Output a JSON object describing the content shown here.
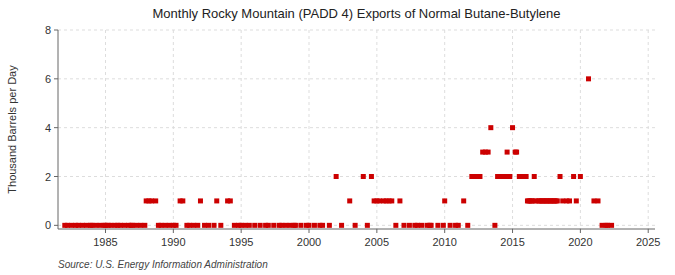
{
  "chart_data": {
    "type": "scatter",
    "title": "Monthly Rocky Mountain (PADD 4) Exports of Normal Butane-Butylene",
    "y_label": "Thousand Barrels per Day",
    "annotations": [
      "Source: U.S. Energy Information Administration"
    ],
    "color": "#cc0000",
    "marker": "square",
    "grid": true,
    "xlim": [
      1981.5,
      2025.5
    ],
    "ylim": [
      -0.15,
      8
    ],
    "yticks": [
      0,
      2,
      4,
      6,
      8
    ],
    "xticks": [
      1985,
      1990,
      1995,
      2000,
      2005,
      2010,
      2015,
      2020,
      2025
    ],
    "x": [
      1982.0,
      1982.2,
      1982.5,
      1982.8,
      1983.0,
      1983.3,
      1983.6,
      1983.9,
      1984.0,
      1984.3,
      1984.6,
      1984.9,
      1985.0,
      1985.2,
      1985.4,
      1985.7,
      1985.9,
      1986.1,
      1986.4,
      1986.7,
      1986.9,
      1987.0,
      1987.3,
      1987.6,
      1987.9,
      1988.0,
      1988.2,
      1988.4,
      1988.7,
      1988.9,
      1989.1,
      1989.4,
      1989.7,
      1990.0,
      1990.2,
      1990.5,
      1990.7,
      1991.0,
      1991.2,
      1991.5,
      1991.8,
      1992.0,
      1992.3,
      1992.6,
      1993.0,
      1993.2,
      1993.5,
      1994.0,
      1994.2,
      1994.5,
      1994.8,
      1995.0,
      1995.3,
      1995.6,
      1996.0,
      1996.4,
      1996.8,
      1997.0,
      1997.4,
      1997.8,
      1998.0,
      1998.3,
      1998.6,
      1998.9,
      1999.0,
      1999.4,
      1999.8,
      2000.0,
      2000.4,
      2000.8,
      2001.0,
      2001.5,
      2002.0,
      2002.4,
      2003.0,
      2003.4,
      2004.0,
      2004.3,
      2004.6,
      2004.8,
      2005.0,
      2005.2,
      2005.5,
      2005.7,
      2005.9,
      2006.1,
      2006.4,
      2006.7,
      2007.0,
      2007.4,
      2007.8,
      2008.0,
      2008.3,
      2008.7,
      2008.9,
      2009.0,
      2009.5,
      2009.9,
      2010.0,
      2010.4,
      2010.8,
      2011.0,
      2011.4,
      2011.7,
      2012.0,
      2012.2,
      2012.4,
      2012.6,
      2012.8,
      2013.0,
      2013.2,
      2013.4,
      2013.7,
      2013.9,
      2014.1,
      2014.3,
      2014.5,
      2014.6,
      2014.8,
      2015.0,
      2015.2,
      2015.3,
      2015.5,
      2015.6,
      2015.8,
      2015.9,
      2016.0,
      2016.1,
      2016.2,
      2016.3,
      2016.4,
      2016.5,
      2016.6,
      2016.7,
      2016.9,
      2017.0,
      2017.1,
      2017.2,
      2017.3,
      2017.4,
      2017.5,
      2017.6,
      2017.7,
      2017.8,
      2017.9,
      2018.0,
      2018.1,
      2018.2,
      2018.3,
      2018.5,
      2018.7,
      2019.0,
      2019.2,
      2019.5,
      2019.7,
      2020.0,
      2020.6,
      2021.0,
      2021.3,
      2021.6,
      2021.9,
      2022.0,
      2022.3
    ],
    "values": [
      0,
      0,
      0,
      0,
      0,
      0,
      0,
      0,
      0,
      0,
      0,
      0,
      0,
      0,
      0,
      0,
      0,
      0,
      0,
      0,
      0,
      0,
      0,
      0,
      0,
      1,
      1,
      1,
      1,
      0,
      0,
      0,
      0,
      0,
      0,
      1,
      1,
      0,
      0,
      0,
      0,
      1,
      0,
      0,
      0,
      1,
      0,
      1,
      1,
      0,
      0,
      0,
      0,
      0,
      0,
      0,
      0,
      0,
      0,
      0,
      0,
      0,
      0,
      0,
      0,
      0,
      0,
      0,
      0,
      0,
      0,
      0,
      2,
      0,
      1,
      0,
      2,
      0,
      2,
      1,
      1,
      1,
      1,
      1,
      1,
      1,
      0,
      1,
      0,
      0,
      0,
      0,
      0,
      0,
      0,
      0,
      0,
      0,
      1,
      0,
      0,
      0,
      1,
      0,
      2,
      2,
      2,
      2,
      3,
      3,
      3,
      4,
      0,
      2,
      2,
      2,
      2,
      3,
      2,
      4,
      3,
      3,
      2,
      2,
      2,
      2,
      2,
      1,
      1,
      1,
      1,
      1,
      2,
      1,
      1,
      1,
      1,
      1,
      1,
      1,
      1,
      1,
      1,
      1,
      1,
      1,
      1,
      1,
      1,
      2,
      1,
      1,
      1,
      2,
      1,
      2,
      6,
      1,
      1,
      0,
      0,
      0,
      0
    ]
  }
}
